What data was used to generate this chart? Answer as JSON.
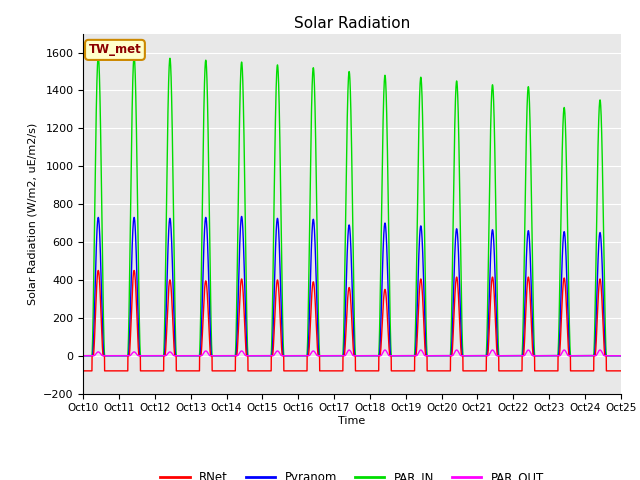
{
  "title": "Solar Radiation",
  "ylabel": "Solar Radiation (W/m2, uE/m2/s)",
  "xlabel": "Time",
  "annotation": "TW_met",
  "xlim": [
    0,
    15
  ],
  "ylim": [
    -200,
    1700
  ],
  "yticks": [
    -200,
    0,
    200,
    400,
    600,
    800,
    1000,
    1200,
    1400,
    1600
  ],
  "xtick_labels": [
    "Oct 10",
    "Oct 11",
    "Oct 12",
    "Oct 13",
    "Oct 14",
    "Oct 15",
    "Oct 16",
    "Oct 17",
    "Oct 18",
    "Oct 19",
    "Oct 20",
    "Oct 21",
    "Oct 22",
    "Oct 23",
    "Oct 24",
    "Oct 25"
  ],
  "xtick_positions": [
    0,
    1,
    2,
    3,
    4,
    5,
    6,
    7,
    8,
    9,
    10,
    11,
    12,
    13,
    14,
    15
  ],
  "series": {
    "RNet": {
      "color": "#ff0000",
      "lw": 1.0
    },
    "Pyranom": {
      "color": "#0000ff",
      "lw": 1.0
    },
    "PAR_IN": {
      "color": "#00dd00",
      "lw": 1.0
    },
    "PAR_OUT": {
      "color": "#ff00ff",
      "lw": 1.0
    }
  },
  "background_color": "#e8e8e8",
  "grid_color": "#ffffff",
  "par_in_peaks": [
    1580,
    1580,
    1570,
    1560,
    1550,
    1535,
    1520,
    1500,
    1480,
    1470,
    1450,
    1430,
    1420,
    1310,
    1350
  ],
  "pyranom_peaks": [
    730,
    730,
    725,
    730,
    735,
    725,
    720,
    690,
    700,
    685,
    670,
    665,
    660,
    655,
    650
  ],
  "rnet_peaks": [
    450,
    450,
    400,
    395,
    405,
    400,
    390,
    360,
    350,
    405,
    415,
    415,
    415,
    410,
    405
  ],
  "rnet_night": -80,
  "par_out_peaks": [
    20,
    20,
    20,
    25,
    25,
    25,
    25,
    30,
    30,
    30,
    30,
    30,
    30,
    30,
    30
  ]
}
